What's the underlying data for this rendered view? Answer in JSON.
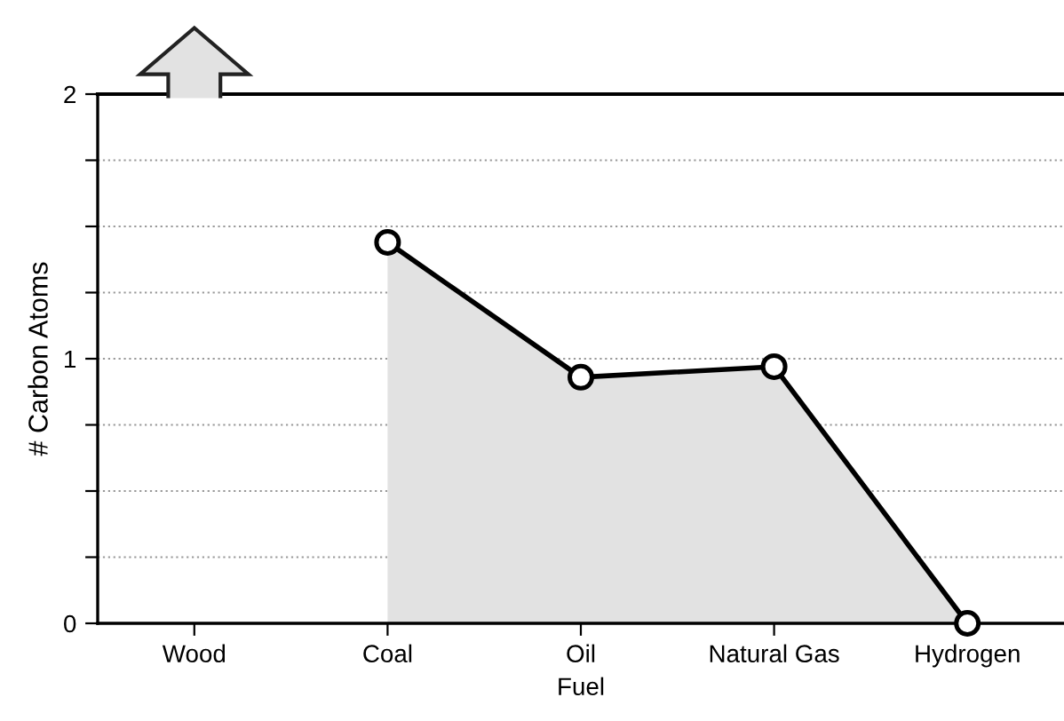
{
  "chart_data": {
    "type": "area",
    "xlabel": "Fuel",
    "ylabel": "# Carbon Atoms",
    "categories": [
      "Wood",
      "Coal",
      "Oil",
      "Natural Gas",
      "Hydrogen"
    ],
    "series": [
      {
        "color": "#000000",
        "values": [
          null,
          1.44,
          0.93,
          0.97,
          0
        ]
      }
    ],
    "ylim": [
      0,
      2
    ],
    "yticks": [
      0,
      {
        "value": 0.25,
        "label": null
      },
      {
        "value": 0.5,
        "label": null
      },
      {
        "value": 0.75,
        "label": null
      },
      1,
      {
        "value": 1.25,
        "label": null
      },
      {
        "value": 1.5,
        "label": null
      },
      {
        "value": 1.75,
        "label": null
      },
      2
    ],
    "grid": "y",
    "marker": "circle",
    "line_style": "solid",
    "legend": false
  }
}
